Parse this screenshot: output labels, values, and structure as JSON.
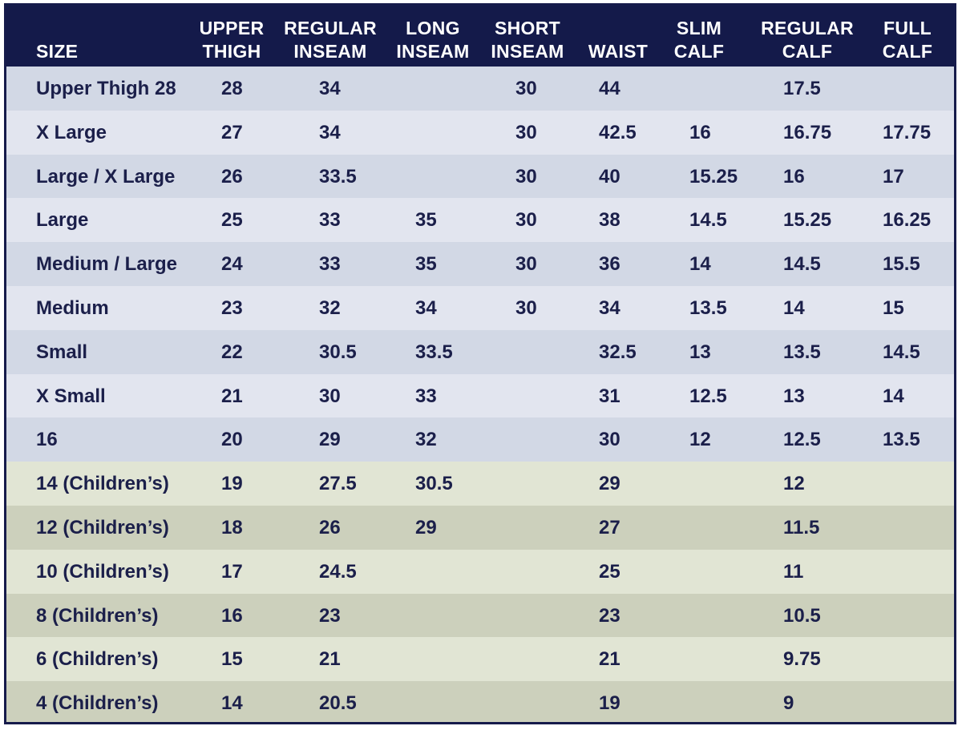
{
  "table": {
    "header": [
      [
        "SIZE"
      ],
      [
        "UPPER",
        "THIGH"
      ],
      [
        "REGULAR",
        "INSEAM"
      ],
      [
        "LONG",
        "INSEAM"
      ],
      [
        "SHORT",
        "INSEAM"
      ],
      [
        "WAIST"
      ],
      [
        "SLIM",
        "CALF"
      ],
      [
        "REGULAR",
        "CALF"
      ],
      [
        "FULL",
        "CALF"
      ]
    ],
    "rows": [
      [
        "Upper Thigh 28",
        "28",
        "34",
        null,
        "30",
        "44",
        null,
        "17.5",
        null
      ],
      [
        "X Large",
        "27",
        "34",
        null,
        "30",
        "42.5",
        "16",
        "16.75",
        "17.75"
      ],
      [
        "Large / X Large",
        "26",
        "33.5",
        null,
        "30",
        "40",
        "15.25",
        "16",
        "17"
      ],
      [
        "Large",
        "25",
        "33",
        "35",
        "30",
        "38",
        "14.5",
        "15.25",
        "16.25"
      ],
      [
        "Medium / Large",
        "24",
        "33",
        "35",
        "30",
        "36",
        "14",
        "14.5",
        "15.5"
      ],
      [
        "Medium",
        "23",
        "32",
        "34",
        "30",
        "34",
        "13.5",
        "14",
        "15"
      ],
      [
        "Small",
        "22",
        "30.5",
        "33.5",
        null,
        "32.5",
        "13",
        "13.5",
        "14.5"
      ],
      [
        "X Small",
        "21",
        "30",
        "33",
        null,
        "31",
        "12.5",
        "13",
        "14"
      ],
      [
        "16",
        "20",
        "29",
        "32",
        null,
        "30",
        "12",
        "12.5",
        "13.5"
      ],
      [
        "14 (Children’s)",
        "19",
        "27.5",
        "30.5",
        null,
        "29",
        null,
        "12",
        null
      ],
      [
        "12 (Children’s)",
        "18",
        "26",
        "29",
        null,
        "27",
        null,
        "11.5",
        null
      ],
      [
        "10 (Children’s)",
        "17",
        "24.5",
        null,
        null,
        "25",
        null,
        "11",
        null
      ],
      [
        "8 (Children’s)",
        "16",
        "23",
        null,
        null,
        "23",
        null,
        "10.5",
        null
      ],
      [
        "6 (Children’s)",
        "15",
        "21",
        null,
        null,
        "21",
        null,
        "9.75",
        null
      ],
      [
        "4 (Children’s)",
        "14",
        "20.5",
        null,
        null,
        "19",
        null,
        "9",
        null
      ]
    ]
  }
}
